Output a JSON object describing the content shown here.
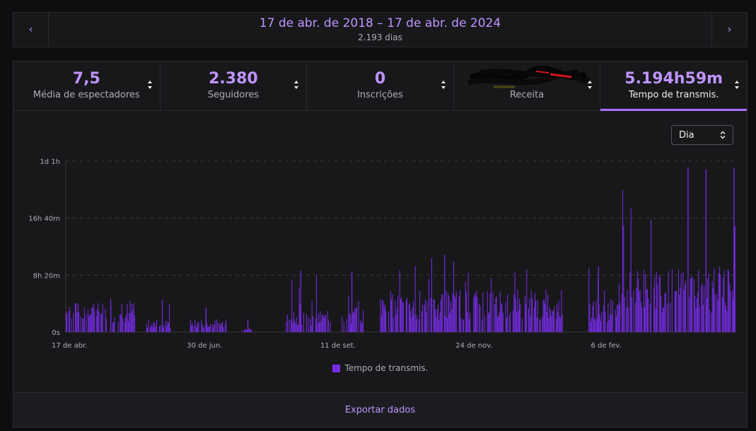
{
  "date_nav": {
    "range": "17 de abr. de 2018 – 17 de abr. de 2024",
    "days": "2.193 dias",
    "prev_icon": "chevron-left-icon",
    "next_icon": "chevron-right-icon"
  },
  "tabs": [
    {
      "value": "7,5",
      "label": "Média de espectadores"
    },
    {
      "value": "2.380",
      "label": "Seguidores"
    },
    {
      "value": "0",
      "label": "Inscrições"
    },
    {
      "value": "",
      "label": "Receita",
      "redacted": true
    },
    {
      "value": "5.194h59m",
      "label": "Tempo de transmis.",
      "active": true
    }
  ],
  "dropdown": {
    "selected": "Dia"
  },
  "footer": {
    "export_label": "Exportar dados"
  },
  "colors": {
    "accent": "#a970ff",
    "bar": "#772ce8",
    "text_accent": "#bf94ff"
  },
  "chart_data": {
    "type": "bar",
    "title": "",
    "xlabel": "",
    "ylabel": "",
    "y_unit": "hours",
    "ylim": [
      0,
      25
    ],
    "y_tick_values": [
      0,
      8.333,
      16.667,
      25
    ],
    "y_tick_labels": [
      "0s",
      "8h 20m",
      "16h 40m",
      "1d 1h"
    ],
    "x_tick_labels": [
      "17 de abr.",
      "30 de jun.",
      "11 de set.",
      "24 de nov.",
      "6 de fev."
    ],
    "x_tick_days": [
      0,
      74,
      147,
      221,
      295
    ],
    "x_range_days": [
      0,
      366
    ],
    "grid": "horizontal-dashed",
    "legend": "bottom-center",
    "series": [
      {
        "name": "Tempo de transmis.",
        "color": "#772ce8",
        "segments": [
          {
            "start_day": 0,
            "end_day": 38,
            "typical_hours": 3.5,
            "peak_hours": 4.8
          },
          {
            "start_day": 44,
            "end_day": 58,
            "typical_hours": 1.5,
            "peak_hours": 4.7
          },
          {
            "start_day": 68,
            "end_day": 88,
            "typical_hours": 1.5,
            "peak_hours": 3.5
          },
          {
            "start_day": 95,
            "end_day": 102,
            "typical_hours": 0.5,
            "peak_hours": 1.8
          },
          {
            "start_day": 120,
            "end_day": 145,
            "typical_hours": 2.5,
            "peak_hours": 9.0
          },
          {
            "start_day": 150,
            "end_day": 163,
            "typical_hours": 3.0,
            "peak_hours": 8.8
          },
          {
            "start_day": 172,
            "end_day": 272,
            "typical_hours": 5.0,
            "peak_hours": 11.3
          },
          {
            "start_day": 285,
            "end_day": 302,
            "typical_hours": 4.0,
            "peak_hours": 9.6
          },
          {
            "start_day": 302,
            "end_day": 366,
            "typical_hours": 7.5,
            "peak_hours": 24.0
          }
        ]
      }
    ]
  }
}
